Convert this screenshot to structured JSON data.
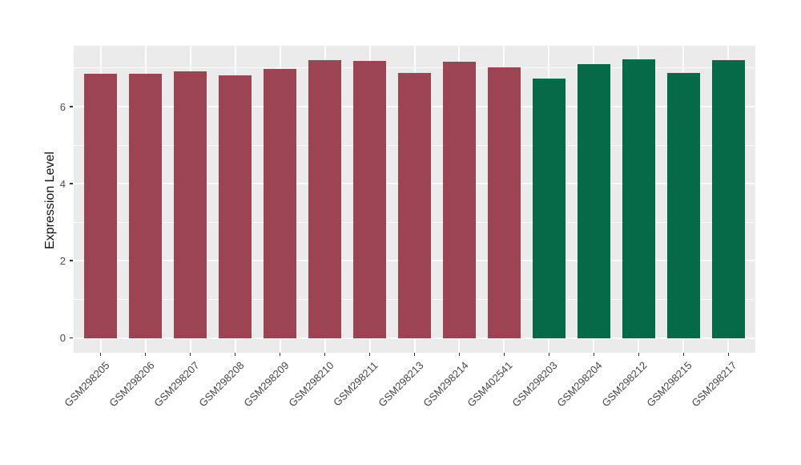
{
  "chart_data": {
    "type": "bar",
    "title": "",
    "xlabel": "",
    "ylabel": "Expression Level",
    "categories": [
      "GSM298205",
      "GSM298206",
      "GSM298207",
      "GSM298208",
      "GSM298209",
      "GSM298210",
      "GSM298211",
      "GSM298213",
      "GSM298214",
      "GSM402541",
      "GSM298203",
      "GSM298204",
      "GSM298212",
      "GSM298215",
      "GSM298217"
    ],
    "values": [
      6.85,
      6.85,
      6.91,
      6.81,
      6.97,
      7.21,
      7.18,
      6.87,
      7.16,
      7.01,
      6.72,
      7.1,
      7.23,
      6.88,
      7.2
    ],
    "bar_groups": [
      0,
      0,
      0,
      0,
      0,
      0,
      0,
      0,
      0,
      0,
      1,
      1,
      1,
      1,
      1
    ],
    "group_colors": [
      "#9D4452",
      "#046A47"
    ],
    "yticks": [
      0,
      2,
      4,
      6
    ],
    "minor_gridlines": [
      1,
      3,
      5,
      7
    ],
    "ylim": [
      -0.38,
      7.58
    ],
    "bar_width_fraction": 0.72,
    "legend": "none",
    "grid": "white major and minor on gray panel",
    "panel_bg": "#EBEBEB",
    "grid_color": "#FFFFFF",
    "axis_text_color": "#4D4D4D",
    "tick_color": "#333333"
  }
}
